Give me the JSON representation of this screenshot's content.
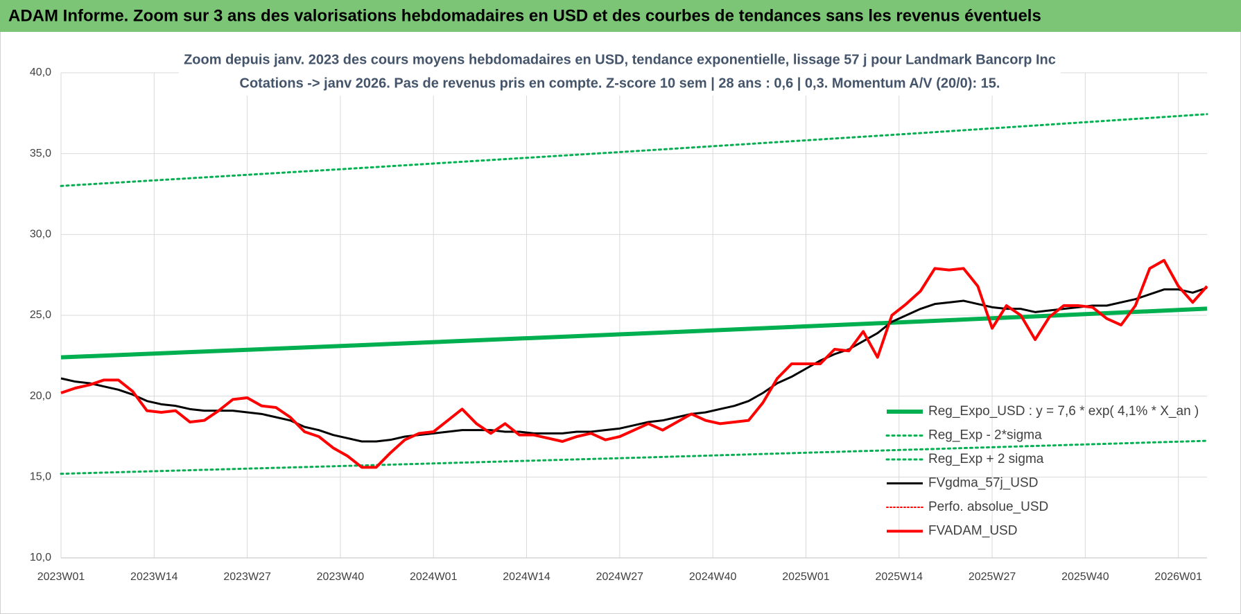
{
  "header": {
    "title": "ADAM Informe. Zoom sur 3 ans des valorisations hebdomadaires en USD et des courbes de tendances sans les revenus éventuels"
  },
  "chart_data": {
    "type": "line",
    "title": "Zoom depuis janv. 2023 des cours moyens hebdomadaires en USD, tendance exponentielle, lissage 57 j pour Landmark Bancorp Inc",
    "subtitle": "Cotations -> janv 2026. Pas de revenus pris en compte. Z-score 10 sem  | 28 ans : 0,6 | 0,3. Momentum A/V (20/0): 15.",
    "x": [
      0,
      2,
      4,
      6,
      8,
      10,
      12,
      14,
      16,
      18,
      20,
      22,
      24,
      26,
      28,
      30,
      32,
      34,
      36,
      38,
      40,
      42,
      44,
      46,
      48,
      50,
      52,
      54,
      56,
      58,
      60,
      62,
      64,
      66,
      68,
      70,
      72,
      74,
      76,
      78,
      80,
      82,
      84,
      86,
      88,
      90,
      92,
      94,
      96,
      98,
      100,
      102,
      104,
      106,
      108,
      110,
      112,
      114,
      116,
      118,
      120,
      122,
      124,
      126,
      128,
      130,
      132,
      134,
      136,
      138,
      140,
      142,
      144,
      146,
      148,
      150,
      152,
      154,
      156,
      158,
      160
    ],
    "xlim": [
      0,
      160
    ],
    "xticks": [
      {
        "value": 0,
        "label": "2023W01"
      },
      {
        "value": 13,
        "label": "2023W14"
      },
      {
        "value": 26,
        "label": "2023W27"
      },
      {
        "value": 39,
        "label": "2023W40"
      },
      {
        "value": 52,
        "label": "2024W01"
      },
      {
        "value": 65,
        "label": "2024W14"
      },
      {
        "value": 78,
        "label": "2024W27"
      },
      {
        "value": 91,
        "label": "2024W40"
      },
      {
        "value": 104,
        "label": "2025W01"
      },
      {
        "value": 117,
        "label": "2025W14"
      },
      {
        "value": 130,
        "label": "2025W27"
      },
      {
        "value": 143,
        "label": "2025W40"
      },
      {
        "value": 156,
        "label": "2026W01"
      }
    ],
    "ylim": [
      10,
      40
    ],
    "yticks": [
      {
        "value": 10,
        "label": "10,0"
      },
      {
        "value": 15,
        "label": "15,0"
      },
      {
        "value": 20,
        "label": "20,0"
      },
      {
        "value": 25,
        "label": "25,0"
      },
      {
        "value": 30,
        "label": "30,0"
      },
      {
        "value": 35,
        "label": "35,0"
      },
      {
        "value": 40,
        "label": "40,0"
      }
    ],
    "grid": true,
    "legend": "right",
    "series": [
      {
        "name": "Reg_Expo_USD : y = 7,6 * exp( 4,1% * X_an )",
        "color": "#00b050",
        "style": "solid",
        "width": 6,
        "x": [
          0,
          40,
          80,
          120,
          160
        ],
        "values": [
          22.4,
          23.12,
          23.86,
          24.62,
          25.41
        ]
      },
      {
        "name": "Reg_Exp - 2*sigma",
        "color": "#00b050",
        "style": "dotted",
        "width": 3,
        "x": [
          0,
          40,
          80,
          120,
          160
        ],
        "values": [
          15.2,
          15.69,
          16.19,
          16.71,
          17.24
        ]
      },
      {
        "name": "Reg_Exp + 2 sigma",
        "color": "#00b050",
        "style": "dotted",
        "width": 3,
        "x": [
          0,
          40,
          80,
          120,
          160
        ],
        "values": [
          33.0,
          34.06,
          35.15,
          36.27,
          37.44
        ]
      },
      {
        "name": "FVgdma_57j_USD",
        "color": "#000000",
        "style": "solid",
        "width": 3,
        "values": [
          21.1,
          20.9,
          20.8,
          20.6,
          20.4,
          20.1,
          19.7,
          19.5,
          19.4,
          19.2,
          19.1,
          19.1,
          19.1,
          19.0,
          18.9,
          18.7,
          18.5,
          18.1,
          17.9,
          17.6,
          17.4,
          17.2,
          17.2,
          17.3,
          17.5,
          17.6,
          17.7,
          17.8,
          17.9,
          17.9,
          17.9,
          17.8,
          17.8,
          17.7,
          17.7,
          17.7,
          17.8,
          17.8,
          17.9,
          18.0,
          18.2,
          18.4,
          18.5,
          18.7,
          18.9,
          19.0,
          19.2,
          19.4,
          19.7,
          20.2,
          20.8,
          21.2,
          21.7,
          22.2,
          22.6,
          22.9,
          23.4,
          23.9,
          24.6,
          25.0,
          25.4,
          25.7,
          25.8,
          25.9,
          25.7,
          25.5,
          25.4,
          25.4,
          25.2,
          25.3,
          25.4,
          25.5,
          25.6,
          25.6,
          25.8,
          26.0,
          26.3,
          26.6,
          26.6,
          26.4,
          26.7
        ]
      },
      {
        "name": "Perfo. absolue_USD",
        "color": "#ff0000",
        "style": "dotted",
        "width": 2
      },
      {
        "name": "FVADAM_USD",
        "color": "#ff0000",
        "style": "solid",
        "width": 4,
        "values": [
          20.2,
          20.5,
          20.7,
          21.0,
          21.0,
          20.3,
          19.1,
          19.0,
          19.1,
          18.4,
          18.5,
          19.1,
          19.8,
          19.9,
          19.4,
          19.3,
          18.7,
          17.8,
          17.5,
          16.8,
          16.3,
          15.6,
          15.6,
          16.5,
          17.3,
          17.7,
          17.8,
          18.5,
          19.2,
          18.3,
          17.7,
          18.3,
          17.6,
          17.6,
          17.4,
          17.2,
          17.5,
          17.7,
          17.3,
          17.5,
          17.9,
          18.3,
          17.9,
          18.4,
          18.9,
          18.5,
          18.3,
          18.4,
          18.5,
          19.6,
          21.1,
          22.0,
          22.0,
          22.0,
          22.9,
          22.8,
          24.0,
          22.4,
          25.0,
          25.7,
          26.5,
          27.9,
          27.8,
          27.9,
          26.8,
          24.2,
          25.6,
          25.0,
          23.5,
          24.9,
          25.6,
          25.6,
          25.5,
          24.8,
          24.4,
          25.6,
          27.9,
          28.4,
          26.8,
          25.8,
          26.8
        ]
      }
    ]
  }
}
